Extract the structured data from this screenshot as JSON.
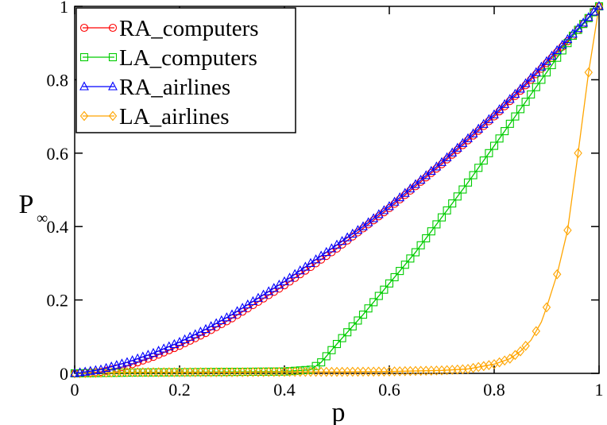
{
  "chart_data": {
    "type": "line",
    "xlabel": "p",
    "ylabel": "P",
    "ylabel_subscript": "∞",
    "xlim": [
      0,
      1
    ],
    "ylim": [
      0,
      1
    ],
    "xticks": [
      "0",
      "0.2",
      "0.4",
      "0.6",
      "0.8",
      "1"
    ],
    "yticks": [
      "0",
      "0.2",
      "0.4",
      "0.6",
      "0.8",
      "1"
    ],
    "grid": false,
    "legend_position": "top-left",
    "series": [
      {
        "name": "RA_computers",
        "color": "#ff0000",
        "marker": "circle",
        "x": [
          0,
          0.05,
          0.1,
          0.15,
          0.2,
          0.25,
          0.3,
          0.35,
          0.4,
          0.45,
          0.5,
          0.55,
          0.6,
          0.65,
          0.7,
          0.75,
          0.8,
          0.85,
          0.9,
          0.95,
          1.0
        ],
        "y": [
          0,
          0.004,
          0.02,
          0.045,
          0.075,
          0.11,
          0.15,
          0.195,
          0.24,
          0.29,
          0.34,
          0.395,
          0.45,
          0.51,
          0.57,
          0.635,
          0.7,
          0.77,
          0.845,
          0.92,
          1.0
        ]
      },
      {
        "name": "LA_computers",
        "color": "#00cc00",
        "marker": "square",
        "x": [
          0,
          0.1,
          0.2,
          0.3,
          0.4,
          0.45,
          0.47,
          0.5,
          0.55,
          0.6,
          0.65,
          0.7,
          0.75,
          0.8,
          0.85,
          0.9,
          0.95,
          1.0
        ],
        "y": [
          0,
          0.002,
          0.003,
          0.004,
          0.005,
          0.01,
          0.03,
          0.08,
          0.16,
          0.245,
          0.33,
          0.425,
          0.52,
          0.62,
          0.72,
          0.82,
          0.92,
          1.0
        ]
      },
      {
        "name": "RA_airlines",
        "color": "#0000ff",
        "marker": "triangle",
        "x": [
          0,
          0.05,
          0.1,
          0.15,
          0.2,
          0.25,
          0.3,
          0.35,
          0.4,
          0.45,
          0.5,
          0.55,
          0.6,
          0.65,
          0.7,
          0.75,
          0.8,
          0.85,
          0.9,
          0.95,
          1.0
        ],
        "y": [
          0,
          0.01,
          0.03,
          0.055,
          0.085,
          0.12,
          0.16,
          0.205,
          0.25,
          0.3,
          0.35,
          0.4,
          0.455,
          0.515,
          0.575,
          0.64,
          0.705,
          0.775,
          0.85,
          0.925,
          1.0
        ]
      },
      {
        "name": "LA_airlines",
        "color": "#ffa500",
        "marker": "diamond",
        "x": [
          0,
          0.1,
          0.2,
          0.3,
          0.4,
          0.5,
          0.6,
          0.7,
          0.75,
          0.8,
          0.83,
          0.85,
          0.87,
          0.89,
          0.9,
          0.92,
          0.94,
          0.96,
          0.98,
          1.0
        ],
        "y": [
          0,
          0.003,
          0.003,
          0.003,
          0.004,
          0.004,
          0.005,
          0.008,
          0.012,
          0.025,
          0.04,
          0.06,
          0.09,
          0.14,
          0.18,
          0.27,
          0.39,
          0.6,
          0.82,
          1.0
        ]
      }
    ]
  }
}
